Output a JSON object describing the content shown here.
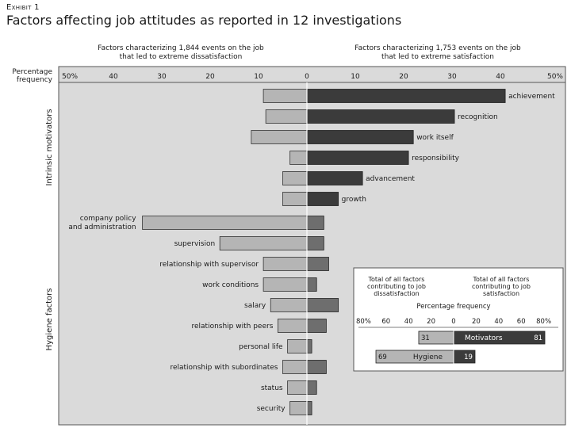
{
  "exhibit_label": "Exhibit 1",
  "title": "Factors affecting job attitudes as reported in 12 investigations",
  "colors": {
    "dissatisfaction": "#b5b5b5",
    "satisfaction": "#3b3b3b",
    "satisfaction_hygiene": "#6e6e6e",
    "panel": "#dadada",
    "frame": "#555555"
  },
  "chart_data": {
    "type": "bar",
    "orientation": "horizontal-diverging",
    "left_header": [
      "Factors characterizing 1,844 events on the job",
      "that led to extreme dissatisfaction"
    ],
    "right_header": [
      "Factors characterizing 1,753 events on the job",
      "that led to extreme satisfaction"
    ],
    "axis_label": [
      "Percentage",
      "frequency"
    ],
    "ticks": [
      {
        "value": -50,
        "label": "50%"
      },
      {
        "value": -40,
        "label": "40"
      },
      {
        "value": -30,
        "label": "30"
      },
      {
        "value": -20,
        "label": "20"
      },
      {
        "value": -10,
        "label": "10"
      },
      {
        "value": 0,
        "label": "0"
      },
      {
        "value": 10,
        "label": "10"
      },
      {
        "value": 20,
        "label": "20"
      },
      {
        "value": 30,
        "label": "30"
      },
      {
        "value": 40,
        "label": "40"
      },
      {
        "value": 50,
        "label": "50%"
      }
    ],
    "xlim": [
      -50,
      50
    ],
    "groups": [
      {
        "name": "Intrinsic motivators",
        "factors": [
          {
            "label": "achievement",
            "dissatisfaction": 9,
            "satisfaction": 41
          },
          {
            "label": "recognition",
            "dissatisfaction": 8.5,
            "satisfaction": 30.5
          },
          {
            "label": "work itself",
            "dissatisfaction": 11.5,
            "satisfaction": 22
          },
          {
            "label": "responsibility",
            "dissatisfaction": 3.5,
            "satisfaction": 21
          },
          {
            "label": "advancement",
            "dissatisfaction": 5,
            "satisfaction": 11.5
          },
          {
            "label": "growth",
            "dissatisfaction": 5,
            "satisfaction": 6.5
          }
        ]
      },
      {
        "name": "Hygiene factors",
        "factors": [
          {
            "label": "company policy and administration",
            "dissatisfaction": 34,
            "satisfaction": 3.5
          },
          {
            "label": "supervision",
            "dissatisfaction": 18,
            "satisfaction": 3.5
          },
          {
            "label": "relationship with supervisor",
            "dissatisfaction": 9,
            "satisfaction": 4.5
          },
          {
            "label": "work conditions",
            "dissatisfaction": 9,
            "satisfaction": 2
          },
          {
            "label": "salary",
            "dissatisfaction": 7.5,
            "satisfaction": 6.5
          },
          {
            "label": "relationship with peers",
            "dissatisfaction": 6,
            "satisfaction": 4
          },
          {
            "label": "personal life",
            "dissatisfaction": 4,
            "satisfaction": 1
          },
          {
            "label": "relationship with subordinates",
            "dissatisfaction": 5,
            "satisfaction": 4
          },
          {
            "label": "status",
            "dissatisfaction": 4,
            "satisfaction": 2
          },
          {
            "label": "security",
            "dissatisfaction": 3.5,
            "satisfaction": 1
          }
        ]
      }
    ],
    "inset": {
      "left_header": [
        "Total of all factors",
        "contributing to job",
        "dissatisfaction"
      ],
      "right_header": [
        "Total of all factors",
        "contributing to job",
        "satisfaction"
      ],
      "axis_label": "Percentage frequency",
      "ticks": [
        {
          "value": -80,
          "label": "80%"
        },
        {
          "value": -60,
          "label": "60"
        },
        {
          "value": -40,
          "label": "40"
        },
        {
          "value": -20,
          "label": "20"
        },
        {
          "value": 0,
          "label": "0"
        },
        {
          "value": 20,
          "label": "20"
        },
        {
          "value": 40,
          "label": "40"
        },
        {
          "value": 60,
          "label": "60"
        },
        {
          "value": 80,
          "label": "80%"
        }
      ],
      "xlim": [
        -80,
        80
      ],
      "bars": [
        {
          "label": "Motivators",
          "dissatisfaction": 31,
          "satisfaction": 81
        },
        {
          "label": "Hygiene",
          "dissatisfaction": 69,
          "satisfaction": 19
        }
      ]
    }
  }
}
